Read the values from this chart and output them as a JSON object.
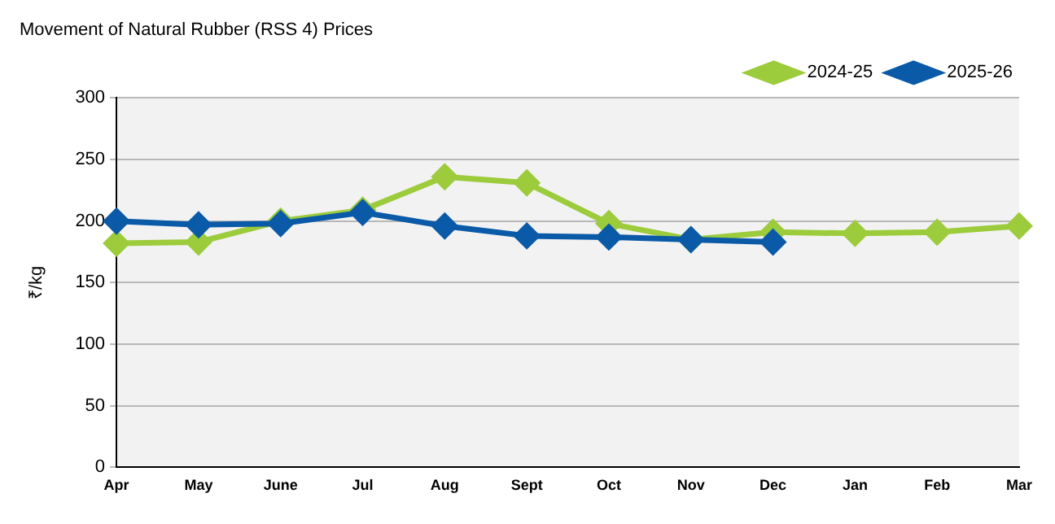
{
  "chart_data": {
    "type": "line",
    "title": "Movement of Natural Rubber (RSS 4) Prices",
    "ylabel": "₹/kg",
    "categories": [
      "Apr",
      "May",
      "June",
      "Jul",
      "Aug",
      "Sept",
      "Oct",
      "Nov",
      "Dec",
      "Jan",
      "Feb",
      "Mar"
    ],
    "series": [
      {
        "name": "2024-25",
        "color": "#9ccb3b",
        "values": [
          182,
          183,
          200,
          209,
          236,
          231,
          198,
          185,
          191,
          190,
          191,
          196
        ]
      },
      {
        "name": "2025-26",
        "color": "#0a5aa8",
        "values": [
          200,
          197,
          198,
          207,
          196,
          188,
          187,
          185,
          183,
          null,
          null,
          null
        ]
      }
    ],
    "ylim": [
      0,
      300
    ],
    "yticks": [
      0,
      50,
      100,
      150,
      200,
      250,
      300
    ],
    "grid": "y",
    "legend": "top right",
    "marker": "diamond",
    "line_style": "solid"
  }
}
